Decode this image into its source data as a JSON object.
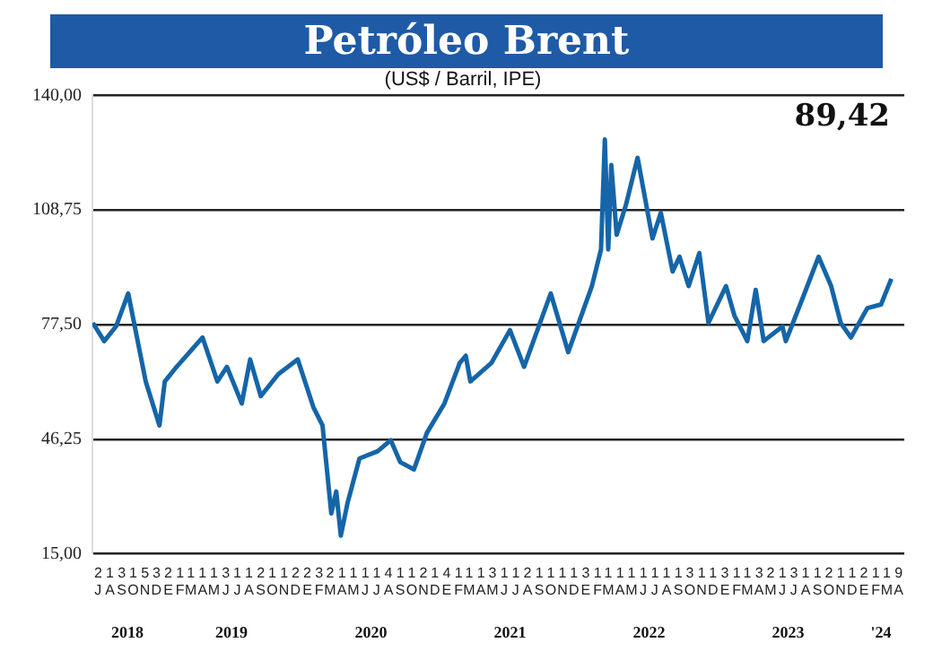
{
  "chart_data": {
    "type": "line",
    "title": "Petróleo Brent",
    "subtitle": "(US$ / Barril, IPE)",
    "annotations": [
      "89,42"
    ],
    "x": [
      "2018-07-02",
      "2018-08-01",
      "2018-09-01",
      "2018-10-03",
      "2018-11-18",
      "2018-12-24",
      "2019-01-07",
      "2019-02-07",
      "2019-04-16",
      "2019-05-25",
      "2019-06-19",
      "2019-07-28",
      "2019-08-19",
      "2019-09-16",
      "2019-11-01",
      "2019-12-22",
      "2020-02-01",
      "2020-02-25",
      "2020-03-19",
      "2020-04-01",
      "2020-04-13",
      "2020-05-01",
      "2020-06-01",
      "2020-07-19",
      "2020-08-22",
      "2020-09-16",
      "2020-10-22",
      "2020-11-25",
      "2021-01-10",
      "2021-02-19",
      "2021-03-07",
      "2021-03-19",
      "2021-05-13",
      "2021-07-01",
      "2021-08-07",
      "2021-10-16",
      "2021-12-01",
      "2022-02-01",
      "2022-02-25",
      "2022-03-07",
      "2022-03-16",
      "2022-03-24",
      "2022-04-07",
      "2022-05-01",
      "2022-06-01",
      "2022-07-10",
      "2022-08-01",
      "2022-09-01",
      "2022-09-19",
      "2022-10-13",
      "2022-11-10",
      "2022-12-04",
      "2023-01-19",
      "2023-02-10",
      "2023-03-16",
      "2023-04-07",
      "2023-04-28",
      "2023-06-16",
      "2023-06-25",
      "2023-08-13",
      "2023-09-19",
      "2023-10-22",
      "2023-11-16",
      "2023-12-13",
      "2024-01-25",
      "2024-03-01",
      "2024-03-28"
    ],
    "series": [
      {
        "color": "#1565a8",
        "values": [
          78,
          73,
          77,
          86,
          62,
          50,
          62,
          66,
          74,
          62,
          66,
          56,
          68,
          58,
          64,
          68,
          55,
          50,
          26,
          32,
          20,
          29,
          41,
          43,
          46,
          40,
          38,
          48,
          56,
          67,
          69,
          62,
          67,
          76,
          66,
          86,
          70,
          88,
          98,
          128,
          98,
          121,
          102,
          110,
          123,
          101,
          108,
          92,
          96,
          88,
          97,
          78,
          88,
          80,
          73,
          87,
          73,
          77,
          73,
          86,
          96,
          88,
          78,
          74,
          82,
          83,
          90
        ]
      }
    ],
    "xlim": [
      "2018-07-01",
      "2024-05-01"
    ],
    "xticks": [
      {
        "value": "2018-07-16",
        "label": "2\nJ"
      },
      {
        "value": "2018-08-16",
        "label": "1\nA"
      },
      {
        "value": "2018-09-16",
        "label": "3\nS"
      },
      {
        "value": "2018-10-16",
        "label": "1\nO"
      },
      {
        "value": "2018-11-16",
        "label": "5\nN"
      },
      {
        "value": "2018-12-16",
        "label": "3\nD"
      },
      {
        "value": "2019-01-16",
        "label": "2\nE"
      },
      {
        "value": "2019-02-16",
        "label": "1\nF"
      },
      {
        "value": "2019-03-16",
        "label": "1\nM"
      },
      {
        "value": "2019-04-16",
        "label": "1\nA"
      },
      {
        "value": "2019-05-16",
        "label": "1\nM"
      },
      {
        "value": "2019-06-16",
        "label": "3\nJ"
      },
      {
        "value": "2019-07-16",
        "label": "1\nJ"
      },
      {
        "value": "2019-08-16",
        "label": "1\nA"
      },
      {
        "value": "2019-09-16",
        "label": "2\nS"
      },
      {
        "value": "2019-10-16",
        "label": "1\nO"
      },
      {
        "value": "2019-11-16",
        "label": "1\nN"
      },
      {
        "value": "2019-12-16",
        "label": "2\nD"
      },
      {
        "value": "2020-01-16",
        "label": "2\nE"
      },
      {
        "value": "2020-02-16",
        "label": "3\nF"
      },
      {
        "value": "2020-03-16",
        "label": "2\nM"
      },
      {
        "value": "2020-04-16",
        "label": "1\nA"
      },
      {
        "value": "2020-05-16",
        "label": "1\nM"
      },
      {
        "value": "2020-06-16",
        "label": "1\nJ"
      },
      {
        "value": "2020-07-16",
        "label": "1\nJ"
      },
      {
        "value": "2020-08-16",
        "label": "4\nA"
      },
      {
        "value": "2020-09-16",
        "label": "1\nS"
      },
      {
        "value": "2020-10-16",
        "label": "1\nO"
      },
      {
        "value": "2020-11-16",
        "label": "2\nN"
      },
      {
        "value": "2020-12-16",
        "label": "1\nD"
      },
      {
        "value": "2021-01-16",
        "label": "4\nE"
      },
      {
        "value": "2021-02-16",
        "label": "1\nF"
      },
      {
        "value": "2021-03-16",
        "label": "1\nM"
      },
      {
        "value": "2021-04-16",
        "label": "1\nA"
      },
      {
        "value": "2021-05-16",
        "label": "3\nM"
      },
      {
        "value": "2021-06-16",
        "label": "1\nJ"
      },
      {
        "value": "2021-07-16",
        "label": "1\nJ"
      },
      {
        "value": "2021-08-16",
        "label": "2\nA"
      },
      {
        "value": "2021-09-16",
        "label": "1\nS"
      },
      {
        "value": "2021-10-16",
        "label": "1\nO"
      },
      {
        "value": "2021-11-16",
        "label": "1\nN"
      },
      {
        "value": "2021-12-16",
        "label": "1\nD"
      },
      {
        "value": "2022-01-16",
        "label": "3\nE"
      },
      {
        "value": "2022-02-16",
        "label": "1\nF"
      },
      {
        "value": "2022-03-16",
        "label": "1\nM"
      },
      {
        "value": "2022-04-16",
        "label": "1\nA"
      },
      {
        "value": "2022-05-16",
        "label": "1\nM"
      },
      {
        "value": "2022-06-16",
        "label": "1\nJ"
      },
      {
        "value": "2022-07-16",
        "label": "1\nJ"
      },
      {
        "value": "2022-08-16",
        "label": "1\nA"
      },
      {
        "value": "2022-09-16",
        "label": "1\nS"
      },
      {
        "value": "2022-10-16",
        "label": "3\nO"
      },
      {
        "value": "2022-11-16",
        "label": "1\nN"
      },
      {
        "value": "2022-12-16",
        "label": "1\nD"
      },
      {
        "value": "2023-01-16",
        "label": "3\nE"
      },
      {
        "value": "2023-02-16",
        "label": "1\nF"
      },
      {
        "value": "2023-03-16",
        "label": "1\nM"
      },
      {
        "value": "2023-04-16",
        "label": "3\nA"
      },
      {
        "value": "2023-05-16",
        "label": "2\nM"
      },
      {
        "value": "2023-06-16",
        "label": "1\nJ"
      },
      {
        "value": "2023-07-16",
        "label": "3\nJ"
      },
      {
        "value": "2023-08-16",
        "label": "1\nA"
      },
      {
        "value": "2023-09-16",
        "label": "1\nS"
      },
      {
        "value": "2023-10-16",
        "label": "2\nO"
      },
      {
        "value": "2023-11-16",
        "label": "1\nN"
      },
      {
        "value": "2023-12-16",
        "label": "1\nD"
      },
      {
        "value": "2024-01-16",
        "label": "2\nE"
      },
      {
        "value": "2024-02-16",
        "label": "1\nF"
      },
      {
        "value": "2024-03-16",
        "label": "1\nM"
      },
      {
        "value": "2024-04-16",
        "label": "9\nA"
      }
    ],
    "x2lim": [
      "2018-07-01",
      "2024-05-01"
    ],
    "x2ticks": [
      {
        "value": "2018-10-01",
        "label": "2018"
      },
      {
        "value": "2019-07-01",
        "label": "2019"
      },
      {
        "value": "2020-07-01",
        "label": "2020"
      },
      {
        "value": "2021-07-01",
        "label": "2021"
      },
      {
        "value": "2022-07-01",
        "label": "2022"
      },
      {
        "value": "2023-07-01",
        "label": "2023"
      },
      {
        "value": "2024-03-01",
        "label": "'24"
      }
    ],
    "ylim": [
      15,
      140
    ],
    "yticks": [
      {
        "value": 15,
        "label": "15,00"
      },
      {
        "value": 46.25,
        "label": "46,25"
      },
      {
        "value": 77.5,
        "label": "77,50"
      },
      {
        "value": 108.75,
        "label": "108,75"
      },
      {
        "value": 140,
        "label": "140,00"
      }
    ],
    "grid": "y",
    "legend": false,
    "marker": "none",
    "line_style": "solid"
  }
}
